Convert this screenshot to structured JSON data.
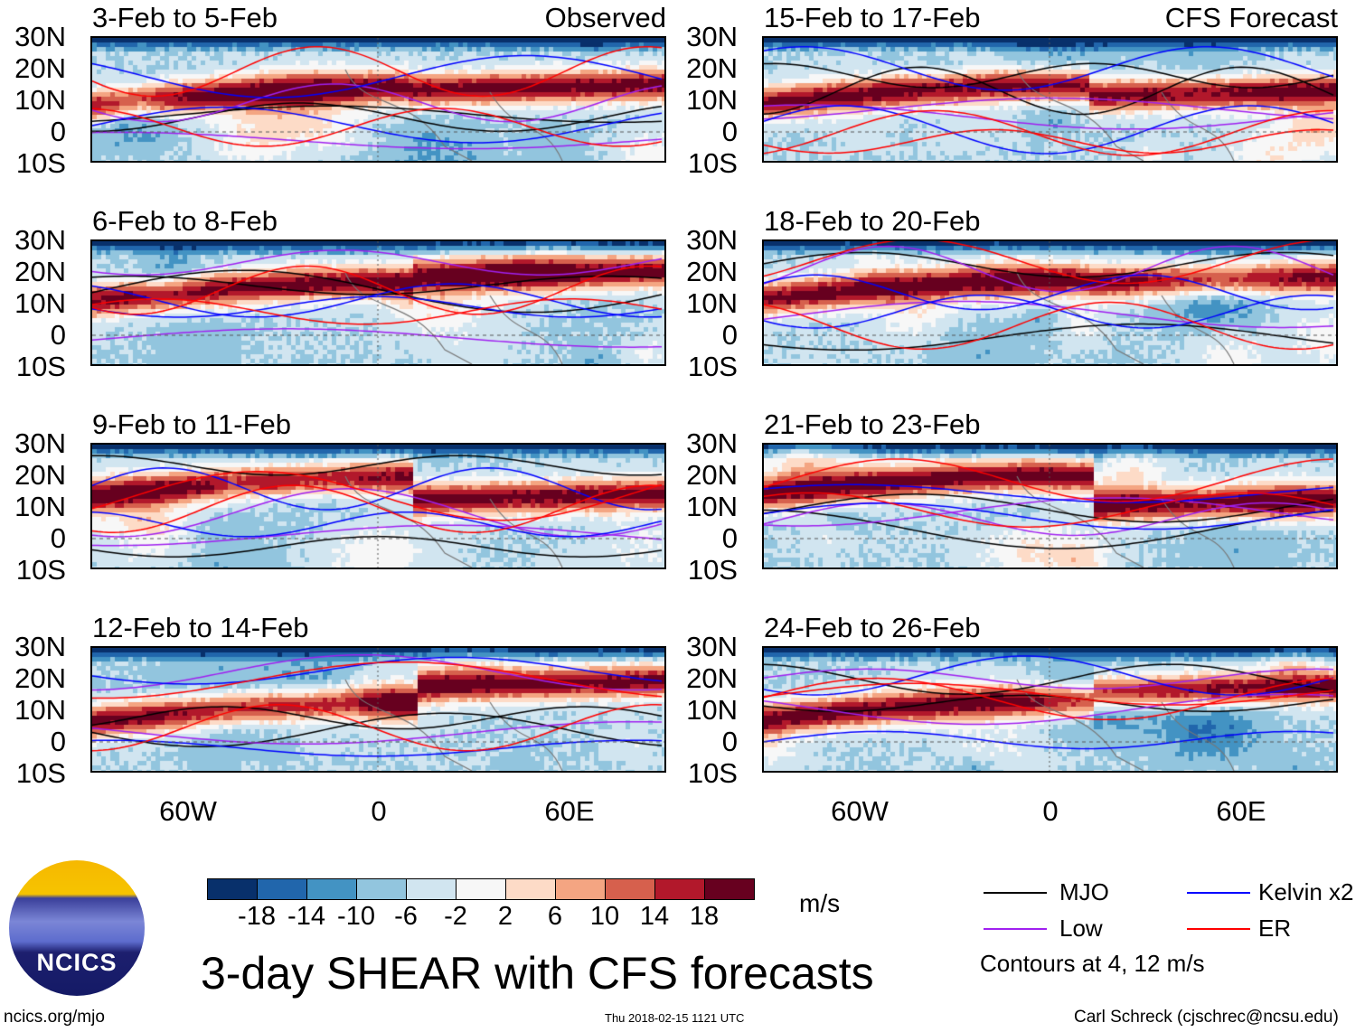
{
  "panels": {
    "left": [
      {
        "title": "3-Feb to 5-Feb",
        "tag": "Observed"
      },
      {
        "title": "6-Feb to 8-Feb"
      },
      {
        "title": "9-Feb to 11-Feb"
      },
      {
        "title": "12-Feb to 14-Feb"
      }
    ],
    "right": [
      {
        "title": "15-Feb to 17-Feb",
        "tag": "CFS Forecast"
      },
      {
        "title": "18-Feb to 20-Feb"
      },
      {
        "title": "21-Feb to 23-Feb"
      },
      {
        "title": "24-Feb to 26-Feb"
      }
    ]
  },
  "lat_labels": [
    "30N",
    "20N",
    "10N",
    "0",
    "10S"
  ],
  "lon_labels": [
    "60W",
    "0",
    "60E"
  ],
  "colorbar": {
    "labels": [
      "-18",
      "-14",
      "-10",
      "-6",
      "-2",
      "2",
      "6",
      "10",
      "14",
      "18"
    ],
    "colors": [
      "#08306b",
      "#2166ac",
      "#4393c3",
      "#92c5de",
      "#d1e5f0",
      "#f7f7f7",
      "#fddbc7",
      "#f4a582",
      "#d6604d",
      "#b2182b",
      "#67001f"
    ],
    "units": "m/s"
  },
  "legend": {
    "items": [
      {
        "label": "MJO",
        "color": "#000000"
      },
      {
        "label": "Kelvin x2",
        "color": "#0000ff"
      },
      {
        "label": "Low",
        "color": "#a020f0"
      },
      {
        "label": "ER",
        "color": "#ff0000"
      }
    ],
    "note": "Contours at 4, 12 m/s"
  },
  "title": "3-day SHEAR with CFS forecasts",
  "logo_text": "NCICS",
  "footer": {
    "left": "ncics.org/mjo",
    "center": "Thu 2018-02-15 1121 UTC",
    "right": "Carl Schreck (cjschrec@ncsu.edu)"
  }
}
